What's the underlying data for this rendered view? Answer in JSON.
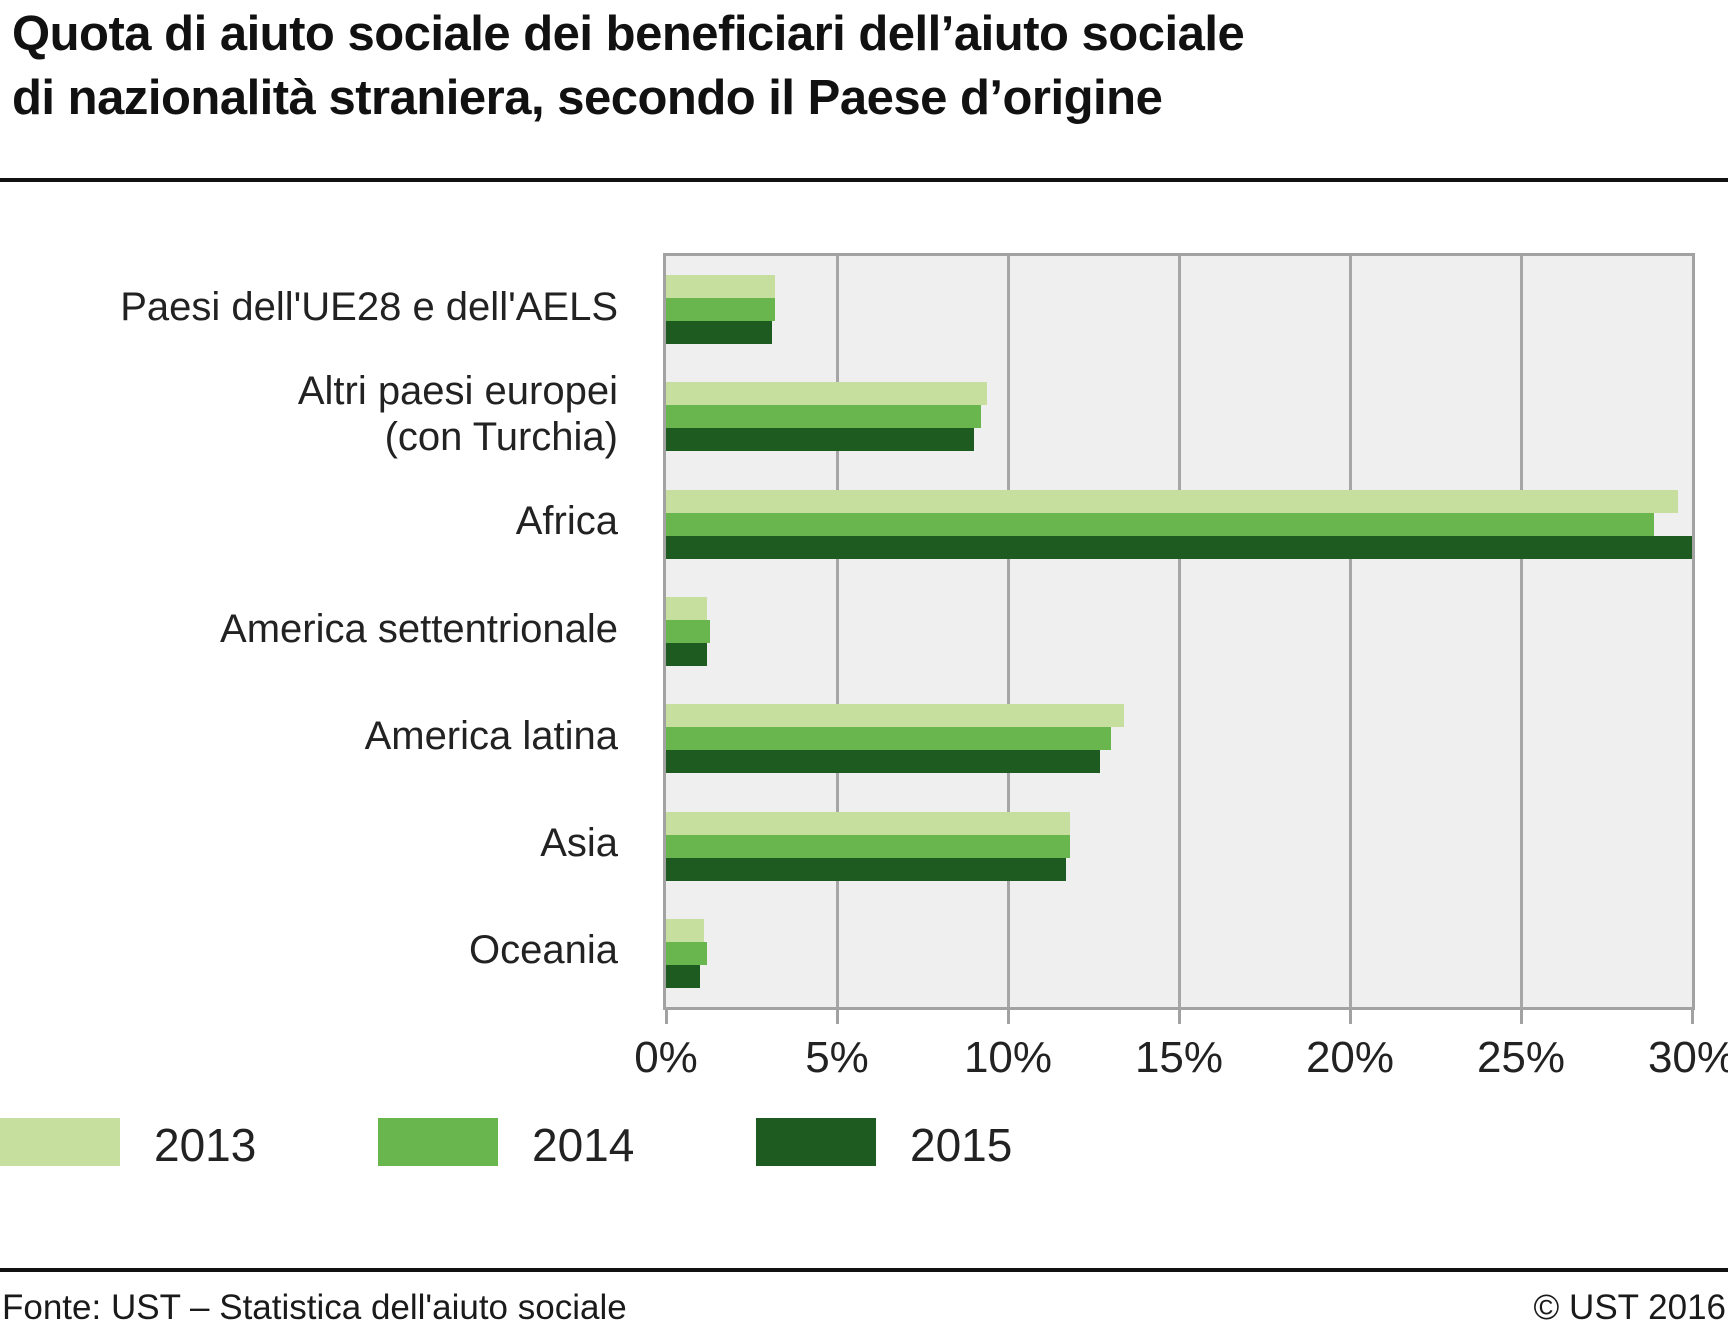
{
  "page": {
    "title_line1": "Quota di aiuto sociale dei beneficiari dell’aiuto sociale",
    "title_line2": "di nazionalità straniera, secondo il Paese d’origine"
  },
  "chart_data": {
    "type": "bar",
    "orientation": "horizontal",
    "title": "Quota di aiuto sociale dei beneficiari dell’aiuto sociale di nazionalità straniera, secondo il Paese d’origine",
    "categories": [
      "Paesi dell'UE28 e dell'AELS",
      "Altri paesi europei\n(con Turchia)",
      "Africa",
      "America settentrionale",
      "America latina",
      "Asia",
      "Oceania"
    ],
    "series": [
      {
        "name": "2013",
        "color": "#c6df9f",
        "values": [
          3.2,
          9.4,
          29.6,
          1.2,
          13.4,
          11.8,
          1.1
        ]
      },
      {
        "name": "2014",
        "color": "#6ab64e",
        "values": [
          3.2,
          9.2,
          28.9,
          1.3,
          13.0,
          11.8,
          1.2
        ]
      },
      {
        "name": "2015",
        "color": "#1e5b20",
        "values": [
          3.1,
          9.0,
          30.0,
          1.2,
          12.7,
          11.7,
          1.0
        ]
      }
    ],
    "xlim": [
      0,
      30
    ],
    "x_ticks": [
      {
        "value": 0,
        "label": "0%"
      },
      {
        "value": 5,
        "label": "5%"
      },
      {
        "value": 10,
        "label": "10%"
      },
      {
        "value": 15,
        "label": "15%"
      },
      {
        "value": 20,
        "label": "20%"
      },
      {
        "value": 25,
        "label": "25%"
      },
      {
        "value": 30,
        "label": "30%"
      }
    ],
    "grid": "vertical",
    "legend_position": "bottom-left",
    "plot_bg": "#efefef",
    "grid_color": "#a6a6a6"
  },
  "footer": {
    "source": "Fonte: UST – Statistica dell'aiuto sociale",
    "copyright": "© UST 2016"
  }
}
